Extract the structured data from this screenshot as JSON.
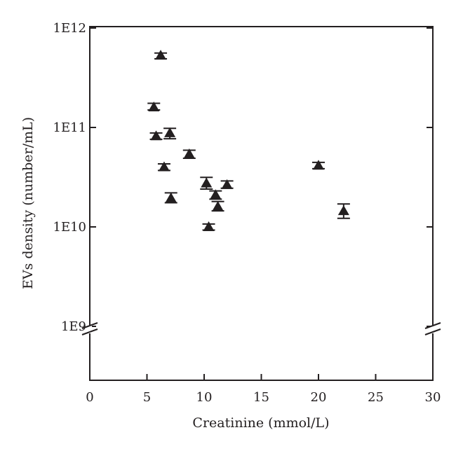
{
  "chart_data": {
    "type": "scatter",
    "title": "",
    "xlabel": "Creatinine (mmol/L)",
    "ylabel": "EVs density (number/mL)",
    "xlim": [
      0,
      30
    ],
    "ylim": [
      1000000000.0,
      1000000000000.0
    ],
    "y_scale": "log",
    "y_axis_break_below": 1000000000.0,
    "grid": false,
    "marker": "triangle",
    "x_ticks": [
      {
        "value": 0,
        "label": "0"
      },
      {
        "value": 5,
        "label": "5"
      },
      {
        "value": 10,
        "label": "10"
      },
      {
        "value": 15,
        "label": "15"
      },
      {
        "value": 20,
        "label": "20"
      },
      {
        "value": 25,
        "label": "25"
      },
      {
        "value": 30,
        "label": "30"
      }
    ],
    "y_ticks": [
      {
        "value": 1000000000.0,
        "label": "1E9"
      },
      {
        "value": 10000000000.0,
        "label": "1E10"
      },
      {
        "value": 100000000000.0,
        "label": "1E11"
      },
      {
        "value": 1000000000000.0,
        "label": "1E12"
      }
    ],
    "points": [
      {
        "x": 6.2,
        "y": 530000000000.0,
        "err_low": 490000000000.0,
        "err_high": 560000000000.0
      },
      {
        "x": 5.6,
        "y": 160000000000.0,
        "err_low": 150000000000.0,
        "err_high": 175000000000.0
      },
      {
        "x": 5.8,
        "y": 82000000000.0,
        "err_low": 76000000000.0,
        "err_high": 88000000000.0
      },
      {
        "x": 7.0,
        "y": 88000000000.0,
        "err_low": 77000000000.0,
        "err_high": 98000000000.0
      },
      {
        "x": 6.5,
        "y": 40000000000.0,
        "err_low": 37000000000.0,
        "err_high": 43000000000.0
      },
      {
        "x": 8.7,
        "y": 54000000000.0,
        "err_low": 49000000000.0,
        "err_high": 59000000000.0
      },
      {
        "x": 7.1,
        "y": 19500000000.0,
        "err_low": 17500000000.0,
        "err_high": 22000000000.0
      },
      {
        "x": 10.2,
        "y": 27500000000.0,
        "err_low": 24000000000.0,
        "err_high": 31500000000.0
      },
      {
        "x": 11.0,
        "y": 21000000000.0,
        "err_low": 19000000000.0,
        "err_high": 23000000000.0
      },
      {
        "x": 11.2,
        "y": 16000000000.0,
        "err_low": 14500000000.0,
        "err_high": 18000000000.0
      },
      {
        "x": 12.0,
        "y": 26500000000.0,
        "err_low": 24500000000.0,
        "err_high": 29000000000.0
      },
      {
        "x": 10.4,
        "y": 10000000000.0,
        "err_low": 9300000000.0,
        "err_high": 10700000000.0
      },
      {
        "x": 20.0,
        "y": 41500000000.0,
        "err_low": 38500000000.0,
        "err_high": 44500000000.0
      },
      {
        "x": 22.2,
        "y": 14500000000.0,
        "err_low": 12200000000.0,
        "err_high": 17000000000.0
      }
    ]
  }
}
